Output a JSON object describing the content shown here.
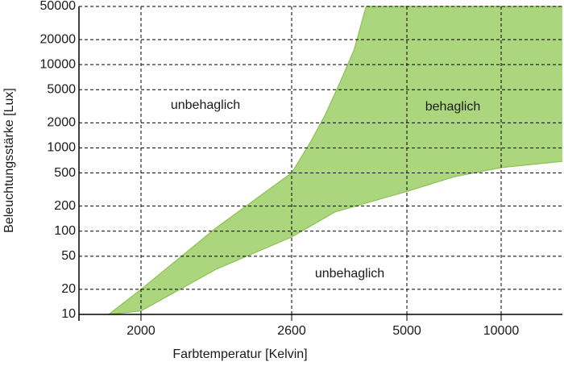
{
  "chart_data": {
    "type": "area",
    "x_label": "Farbtemperatur [Kelvin]",
    "y_label": "Beleuchtungsstärke [Lux]",
    "xlim": [
      1750,
      13250
    ],
    "xticks": [
      2000,
      2600,
      5000,
      10000
    ],
    "ylim": [
      10,
      50000
    ],
    "yticks": [
      10,
      20,
      50,
      100,
      200,
      500,
      1000,
      2000,
      5000,
      10000,
      20000,
      50000
    ],
    "log_y": true,
    "grid": true,
    "color": "#acd67e",
    "line_color": "#8cc152",
    "boundaries": [
      {
        "x": [
          1870,
          2000,
          2300,
          2600,
          3500,
          5000,
          7500,
          10000,
          13250
        ],
        "values": [
          10,
          11,
          35,
          85,
          170,
          300,
          450,
          580,
          690
        ]
      },
      {
        "x": [
          1870,
          2000,
          2300,
          2600,
          3000,
          3300,
          3600,
          3900,
          4150,
          13250
        ],
        "values": [
          10,
          20,
          110,
          500,
          1200,
          2500,
          6000,
          15000,
          50000,
          50000
        ]
      }
    ],
    "annotations": [
      "unbehaglich",
      "behaglich",
      "unbehaglich"
    ]
  }
}
